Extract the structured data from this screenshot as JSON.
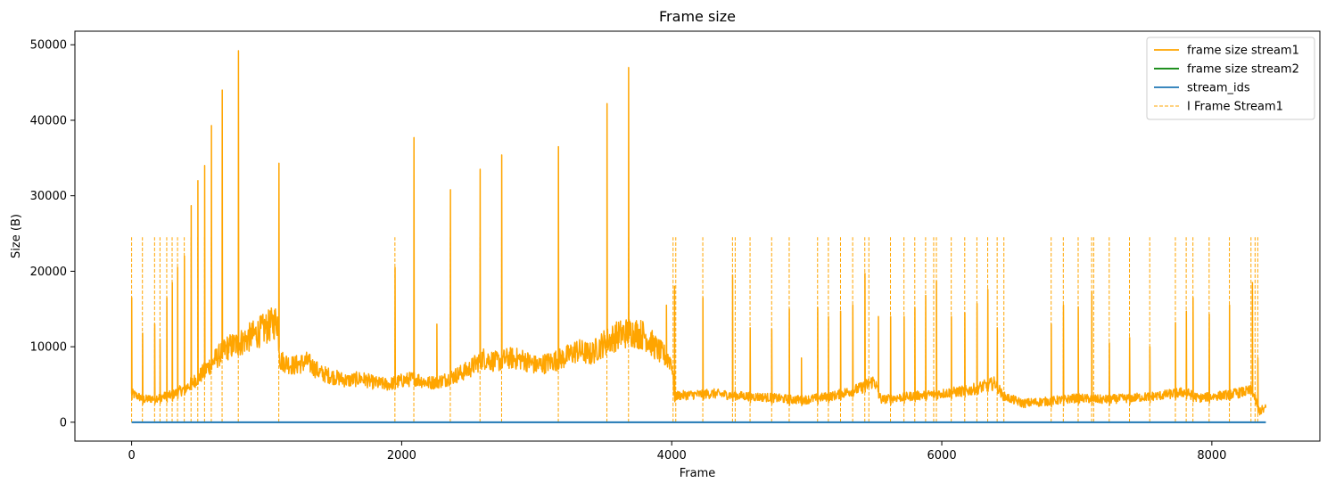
{
  "chart_data": {
    "type": "line",
    "title": "Frame size",
    "xlabel": "Frame",
    "ylabel": "Size (B)",
    "xlim": [
      -420,
      8800
    ],
    "ylim": [
      -2500,
      51800
    ],
    "x_ticks": [
      0,
      2000,
      4000,
      6000,
      8000
    ],
    "y_ticks": [
      0,
      10000,
      20000,
      30000,
      40000,
      50000
    ],
    "x_tick_labels": [
      "0",
      "2000",
      "4000",
      "6000",
      "8000"
    ],
    "y_tick_labels": [
      "0",
      "10000",
      "20000",
      "30000",
      "40000",
      "50000"
    ],
    "grid": false,
    "legend_position": "top-right",
    "legend": [
      {
        "label": "frame size stream1",
        "color": "#ffa500",
        "style": "solid"
      },
      {
        "label": "frame size stream2",
        "color": "#008000",
        "style": "solid"
      },
      {
        "label": "stream_ids",
        "color": "#1f77b4",
        "style": "solid"
      },
      {
        "label": "I Frame Stream1",
        "color": "#ffa500",
        "style": "dashed"
      }
    ],
    "series": [
      {
        "name": "frame size stream1",
        "color": "#ffa500",
        "baseline": [
          [
            0,
            3800
          ],
          [
            100,
            3000
          ],
          [
            200,
            3300
          ],
          [
            300,
            3600
          ],
          [
            400,
            4500
          ],
          [
            500,
            6000
          ],
          [
            600,
            8000
          ],
          [
            700,
            9800
          ],
          [
            800,
            10500
          ],
          [
            900,
            11500
          ],
          [
            1000,
            12500
          ],
          [
            1080,
            13500
          ],
          [
            1100,
            8200
          ],
          [
            1200,
            7500
          ],
          [
            1300,
            8000
          ],
          [
            1400,
            6500
          ],
          [
            1500,
            6000
          ],
          [
            1600,
            5500
          ],
          [
            1700,
            5800
          ],
          [
            1800,
            5200
          ],
          [
            1900,
            5000
          ],
          [
            2000,
            5500
          ],
          [
            2100,
            5800
          ],
          [
            2200,
            5200
          ],
          [
            2300,
            5500
          ],
          [
            2400,
            6200
          ],
          [
            2500,
            7000
          ],
          [
            2600,
            8500
          ],
          [
            2700,
            8000
          ],
          [
            2800,
            8500
          ],
          [
            2900,
            8300
          ],
          [
            3000,
            7500
          ],
          [
            3100,
            8000
          ],
          [
            3200,
            8500
          ],
          [
            3300,
            9500
          ],
          [
            3400,
            9000
          ],
          [
            3500,
            10500
          ],
          [
            3600,
            11500
          ],
          [
            3700,
            12000
          ],
          [
            3800,
            11500
          ],
          [
            3900,
            9500
          ],
          [
            4000,
            8000
          ],
          [
            4020,
            3500
          ],
          [
            4300,
            3800
          ],
          [
            4500,
            3500
          ],
          [
            4700,
            3300
          ],
          [
            4900,
            3000
          ],
          [
            5000,
            3000
          ],
          [
            5200,
            3500
          ],
          [
            5400,
            4500
          ],
          [
            5500,
            5500
          ],
          [
            5550,
            3000
          ],
          [
            5800,
            3500
          ],
          [
            6000,
            3800
          ],
          [
            6200,
            4200
          ],
          [
            6400,
            5200
          ],
          [
            6450,
            3500
          ],
          [
            6600,
            2500
          ],
          [
            6800,
            2800
          ],
          [
            7000,
            3200
          ],
          [
            7200,
            3000
          ],
          [
            7400,
            3200
          ],
          [
            7600,
            3500
          ],
          [
            7800,
            4000
          ],
          [
            7900,
            3200
          ],
          [
            8100,
            3600
          ],
          [
            8300,
            4200
          ],
          [
            8350,
            1500
          ],
          [
            8400,
            1800
          ]
        ],
        "spikes": [
          [
            0,
            16500
          ],
          [
            80,
            11800
          ],
          [
            170,
            13000
          ],
          [
            210,
            11000
          ],
          [
            260,
            16500
          ],
          [
            300,
            18500
          ],
          [
            340,
            20500
          ],
          [
            390,
            22000
          ],
          [
            440,
            28700
          ],
          [
            490,
            32000
          ],
          [
            540,
            34000
          ],
          [
            590,
            39300
          ],
          [
            670,
            44000
          ],
          [
            790,
            49200
          ],
          [
            1090,
            34300
          ],
          [
            1950,
            20500
          ],
          [
            2090,
            37700
          ],
          [
            2260,
            13000
          ],
          [
            2360,
            30800
          ],
          [
            2580,
            33500
          ],
          [
            2740,
            35400
          ],
          [
            3160,
            36500
          ],
          [
            3520,
            42200
          ],
          [
            3680,
            47000
          ],
          [
            3960,
            15500
          ],
          [
            4020,
            18000
          ],
          [
            4230,
            16500
          ],
          [
            4450,
            19500
          ],
          [
            4580,
            12500
          ],
          [
            4740,
            12300
          ],
          [
            4870,
            15000
          ],
          [
            4960,
            8500
          ],
          [
            5080,
            15200
          ],
          [
            5160,
            14000
          ],
          [
            5250,
            14700
          ],
          [
            5340,
            15500
          ],
          [
            5430,
            19700
          ],
          [
            5530,
            14000
          ],
          [
            5620,
            14000
          ],
          [
            5720,
            14000
          ],
          [
            5800,
            15200
          ],
          [
            5880,
            16800
          ],
          [
            5960,
            18700
          ],
          [
            6070,
            14000
          ],
          [
            6170,
            14500
          ],
          [
            6260,
            15700
          ],
          [
            6340,
            17600
          ],
          [
            6410,
            12500
          ],
          [
            6810,
            13000
          ],
          [
            6900,
            15500
          ],
          [
            7010,
            15300
          ],
          [
            7110,
            17300
          ],
          [
            7240,
            10500
          ],
          [
            7390,
            11200
          ],
          [
            7540,
            10000
          ],
          [
            7730,
            13200
          ],
          [
            7810,
            14700
          ],
          [
            7860,
            16500
          ],
          [
            7980,
            14300
          ],
          [
            8130,
            15500
          ],
          [
            8300,
            18500
          ],
          [
            8340,
            8500
          ]
        ]
      },
      {
        "name": "stream_ids",
        "color": "#1f77b4",
        "values": [
          [
            0,
            0
          ],
          [
            8400,
            0
          ]
        ]
      }
    ],
    "i_frame_markers": {
      "label": "I Frame Stream1",
      "color": "#ffa500",
      "y_top": 24500,
      "x": [
        0,
        80,
        170,
        210,
        260,
        300,
        340,
        390,
        440,
        490,
        540,
        590,
        670,
        790,
        1090,
        1950,
        2090,
        2360,
        2580,
        2740,
        3160,
        3520,
        3680,
        4010,
        4030,
        4230,
        4450,
        4470,
        4580,
        4740,
        4870,
        5080,
        5160,
        5250,
        5340,
        5430,
        5460,
        5620,
        5720,
        5800,
        5880,
        5940,
        5960,
        6070,
        6170,
        6260,
        6340,
        6410,
        6460,
        6810,
        6900,
        7010,
        7110,
        7125,
        7240,
        7390,
        7540,
        7730,
        7810,
        7860,
        7980,
        8130,
        8290,
        8320,
        8340
      ]
    }
  }
}
